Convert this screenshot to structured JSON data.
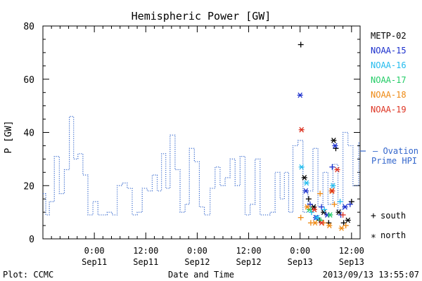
{
  "chart_data": {
    "type": "line",
    "title": "Hemispheric Power [GW]",
    "ylabel": "P [GW]",
    "xlabel": "Date and Time",
    "ylim": [
      0,
      80
    ],
    "yticks": [
      0,
      20,
      40,
      60,
      80
    ],
    "xlim": [
      "2013-09-10 12:00",
      "2013-09-13 14:00"
    ],
    "xticks": [
      {
        "t": "2013-09-11 00:00",
        "line1": "0:00",
        "line2": "Sep11"
      },
      {
        "t": "2013-09-11 12:00",
        "line1": "12:00",
        "line2": "Sep11"
      },
      {
        "t": "2013-09-12 00:00",
        "line1": "0:00",
        "line2": "Sep12"
      },
      {
        "t": "2013-09-12 12:00",
        "line1": "12:00",
        "line2": "Sep12"
      },
      {
        "t": "2013-09-13 00:00",
        "line1": "0:00",
        "line2": "Sep13"
      },
      {
        "t": "2013-09-13 12:00",
        "line1": "12:00",
        "line2": "Sep13"
      }
    ],
    "ovation": {
      "name": "Ovation Prime HPI",
      "label_line1": "– Ovation",
      "label_line2": "Prime HPI",
      "color": "#3366cc",
      "points": [
        [
          "2013-09-10 12:00",
          17
        ],
        [
          "2013-09-10 12:40",
          9
        ],
        [
          "2013-09-10 13:30",
          14
        ],
        [
          "2013-09-10 14:40",
          31
        ],
        [
          "2013-09-10 15:50",
          17
        ],
        [
          "2013-09-10 17:00",
          26
        ],
        [
          "2013-09-10 18:10",
          46
        ],
        [
          "2013-09-10 19:10",
          30
        ],
        [
          "2013-09-10 20:10",
          32
        ],
        [
          "2013-09-10 21:20",
          24
        ],
        [
          "2013-09-10 22:30",
          9
        ],
        [
          "2013-09-10 23:40",
          14
        ],
        [
          "2013-09-11 00:50",
          9
        ],
        [
          "2013-09-11 03:00",
          10
        ],
        [
          "2013-09-11 04:10",
          9
        ],
        [
          "2013-09-11 05:20",
          20
        ],
        [
          "2013-09-11 06:30",
          21
        ],
        [
          "2013-09-11 07:40",
          19
        ],
        [
          "2013-09-11 08:50",
          9
        ],
        [
          "2013-09-11 10:00",
          10
        ],
        [
          "2013-09-11 11:10",
          19
        ],
        [
          "2013-09-11 12:20",
          18
        ],
        [
          "2013-09-11 13:30",
          24
        ],
        [
          "2013-09-11 14:40",
          18
        ],
        [
          "2013-09-11 15:40",
          32
        ],
        [
          "2013-09-11 16:40",
          19
        ],
        [
          "2013-09-11 17:40",
          39
        ],
        [
          "2013-09-11 18:50",
          26
        ],
        [
          "2013-09-11 20:00",
          10
        ],
        [
          "2013-09-11 21:10",
          13
        ],
        [
          "2013-09-11 22:10",
          34
        ],
        [
          "2013-09-11 23:20",
          29
        ],
        [
          "2013-09-12 00:30",
          12
        ],
        [
          "2013-09-12 01:40",
          9
        ],
        [
          "2013-09-12 03:00",
          19
        ],
        [
          "2013-09-12 04:10",
          27
        ],
        [
          "2013-09-12 05:20",
          20
        ],
        [
          "2013-09-12 06:30",
          23
        ],
        [
          "2013-09-12 07:40",
          30
        ],
        [
          "2013-09-12 08:50",
          20
        ],
        [
          "2013-09-12 10:00",
          31
        ],
        [
          "2013-09-12 11:10",
          9
        ],
        [
          "2013-09-12 12:20",
          13
        ],
        [
          "2013-09-12 13:30",
          30
        ],
        [
          "2013-09-12 14:40",
          9
        ],
        [
          "2013-09-12 17:00",
          10
        ],
        [
          "2013-09-12 18:10",
          25
        ],
        [
          "2013-09-12 19:20",
          15
        ],
        [
          "2013-09-12 20:20",
          25
        ],
        [
          "2013-09-12 21:20",
          10
        ],
        [
          "2013-09-12 22:20",
          35
        ],
        [
          "2013-09-12 23:30",
          37
        ],
        [
          "2013-09-13 00:40",
          10
        ],
        [
          "2013-09-13 01:50",
          18
        ],
        [
          "2013-09-13 03:00",
          34
        ],
        [
          "2013-09-13 04:10",
          12
        ],
        [
          "2013-09-13 05:20",
          25
        ],
        [
          "2013-09-13 06:30",
          13
        ],
        [
          "2013-09-13 07:40",
          28
        ],
        [
          "2013-09-13 08:50",
          11
        ],
        [
          "2013-09-13 10:00",
          40
        ],
        [
          "2013-09-13 11:10",
          35
        ],
        [
          "2013-09-13 12:20",
          20
        ],
        [
          "2013-09-13 13:40",
          36
        ]
      ]
    },
    "series": [
      {
        "name": "METP-02",
        "color": "#000000",
        "points": [
          [
            "2013-09-13 00:10",
            73,
            "+"
          ],
          [
            "2013-09-13 01:00",
            23,
            "*"
          ],
          [
            "2013-09-13 02:00",
            15,
            "+"
          ],
          [
            "2013-09-13 03:10",
            12,
            "*"
          ],
          [
            "2013-09-13 04:30",
            7,
            "+"
          ],
          [
            "2013-09-13 05:30",
            10,
            "*"
          ],
          [
            "2013-09-13 06:40",
            6,
            "+"
          ],
          [
            "2013-09-13 07:50",
            37,
            "*"
          ],
          [
            "2013-09-13 08:20",
            34,
            "+"
          ],
          [
            "2013-09-13 09:00",
            10,
            "*"
          ],
          [
            "2013-09-13 10:10",
            6,
            "+"
          ],
          [
            "2013-09-13 11:10",
            7,
            "*"
          ],
          [
            "2013-09-13 12:00",
            14,
            "+"
          ]
        ]
      },
      {
        "name": "NOAA-15",
        "color": "#1a2ecc",
        "points": [
          [
            "2013-09-13 00:00",
            54,
            "*"
          ],
          [
            "2013-09-13 01:20",
            18,
            "*"
          ],
          [
            "2013-09-13 02:20",
            13,
            "+"
          ],
          [
            "2013-09-13 03:40",
            8,
            "*"
          ],
          [
            "2013-09-13 05:00",
            12,
            "+"
          ],
          [
            "2013-09-13 06:20",
            9,
            "*"
          ],
          [
            "2013-09-13 07:30",
            27,
            "+"
          ],
          [
            "2013-09-13 08:10",
            35,
            "*"
          ],
          [
            "2013-09-13 09:30",
            9,
            "+"
          ],
          [
            "2013-09-13 10:30",
            12,
            "*"
          ],
          [
            "2013-09-13 11:40",
            13,
            "+"
          ]
        ]
      },
      {
        "name": "NOAA-16",
        "color": "#22bbee",
        "points": [
          [
            "2013-09-13 00:20",
            27,
            "*"
          ],
          [
            "2013-09-13 01:30",
            21,
            "*"
          ],
          [
            "2013-09-13 02:40",
            10,
            "+"
          ],
          [
            "2013-09-13 04:00",
            8,
            "*"
          ],
          [
            "2013-09-13 05:40",
            11,
            "+"
          ],
          [
            "2013-09-13 07:40",
            20,
            "*"
          ],
          [
            "2013-09-13 09:20",
            14,
            "+"
          ]
        ]
      },
      {
        "name": "NOAA-17",
        "color": "#22cc66",
        "points": [
          [
            "2013-09-13 02:10",
            11,
            "*"
          ],
          [
            "2013-09-13 04:50",
            7,
            "+"
          ],
          [
            "2013-09-13 07:00",
            9,
            "*"
          ]
        ]
      },
      {
        "name": "NOAA-18",
        "color": "#ee8811",
        "points": [
          [
            "2013-09-13 00:10",
            8,
            "+"
          ],
          [
            "2013-09-13 01:40",
            12,
            "*"
          ],
          [
            "2013-09-13 02:30",
            6,
            "+"
          ],
          [
            "2013-09-13 03:30",
            6,
            "*"
          ],
          [
            "2013-09-13 04:40",
            17,
            "+"
          ],
          [
            "2013-09-13 05:30",
            6,
            "+"
          ],
          [
            "2013-09-13 06:50",
            5,
            "*"
          ],
          [
            "2013-09-13 07:20",
            18,
            "*"
          ],
          [
            "2013-09-13 08:00",
            13,
            "+"
          ],
          [
            "2013-09-13 09:40",
            4,
            "*"
          ],
          [
            "2013-09-13 10:40",
            5,
            "+"
          ]
        ]
      },
      {
        "name": "NOAA-19",
        "color": "#dd3322",
        "points": [
          [
            "2013-09-13 00:20",
            41,
            "*"
          ],
          [
            "2013-09-13 03:20",
            11,
            "*"
          ],
          [
            "2013-09-13 05:00",
            6,
            "*"
          ],
          [
            "2013-09-13 07:30",
            18,
            "*"
          ],
          [
            "2013-09-13 08:40",
            26,
            "*"
          ],
          [
            "2013-09-13 10:00",
            9,
            "+"
          ]
        ]
      }
    ],
    "marker_key": [
      {
        "symbol": "+",
        "label": "south"
      },
      {
        "symbol": "*",
        "label": "north"
      }
    ],
    "footer_left": "Plot: CCMC",
    "footer_right": "2013/09/13 13:55:07"
  }
}
